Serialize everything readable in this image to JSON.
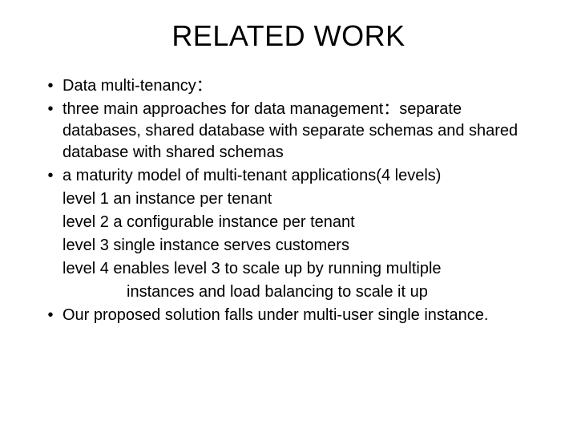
{
  "slide": {
    "title": "RELATED WORK",
    "title_fontsize": 36,
    "body_fontsize": 20,
    "background_color": "#ffffff",
    "text_color": "#000000",
    "bullet_char": "•",
    "bullets": [
      {
        "text": "Data multi-tenancy："
      },
      {
        "text": "three main approaches for data management：separate databases, shared database with separate schemas and shared database with shared schemas"
      },
      {
        "text": "a maturity model of multi-tenant applications(4 levels)",
        "sublines": [
          "level 1 an instance per tenant",
          "level 2 a configurable instance per tenant",
          "level 3 single instance serves customers",
          "level 4  enables level 3 to scale up by running multiple"
        ],
        "sublines_indent": [
          "instances and load balancing to scale it up"
        ]
      },
      {
        "text": "Our proposed solution falls under multi-user single instance."
      }
    ]
  }
}
